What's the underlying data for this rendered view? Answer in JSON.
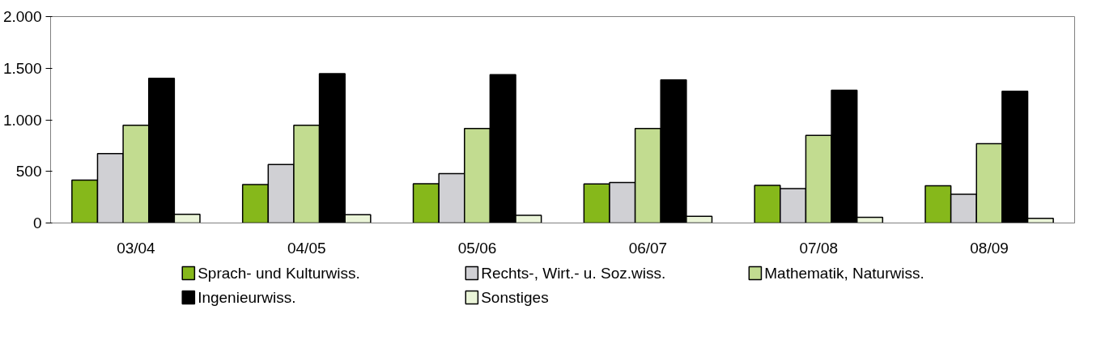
{
  "chart_data": {
    "type": "bar",
    "categories": [
      "03/04",
      "04/05",
      "05/06",
      "06/07",
      "07/08",
      "08/09"
    ],
    "series": [
      {
        "name": "Sprach- und Kulturwiss.",
        "color": "#86b81b",
        "values": [
          415,
          373,
          380,
          379,
          365,
          361
        ]
      },
      {
        "name": "Rechts-, Wirt.- u. Soz.wiss.",
        "color": "#d0d0d4",
        "values": [
          672,
          567,
          479,
          392,
          334,
          279
        ]
      },
      {
        "name": "Mathematik, Naturwiss.",
        "color": "#c2dc90",
        "values": [
          947,
          947,
          915,
          916,
          850,
          768
        ]
      },
      {
        "name": "Ingenieurwiss.",
        "color": "#000000",
        "values": [
          1401,
          1447,
          1437,
          1387,
          1287,
          1277
        ]
      },
      {
        "name": "Sonstiges",
        "color": "#eaf4d8",
        "values": [
          85,
          81,
          74,
          65,
          55,
          45
        ]
      }
    ],
    "ylim": [
      0,
      2000
    ],
    "yticks": [
      0,
      {
        "value": 500,
        "label": "500"
      },
      {
        "value": 1000,
        "label": "1.000"
      },
      {
        "value": 1500,
        "label": "1.500"
      },
      {
        "value": 2000,
        "label": "2.000"
      }
    ],
    "grid": false,
    "legend": "bottom"
  }
}
